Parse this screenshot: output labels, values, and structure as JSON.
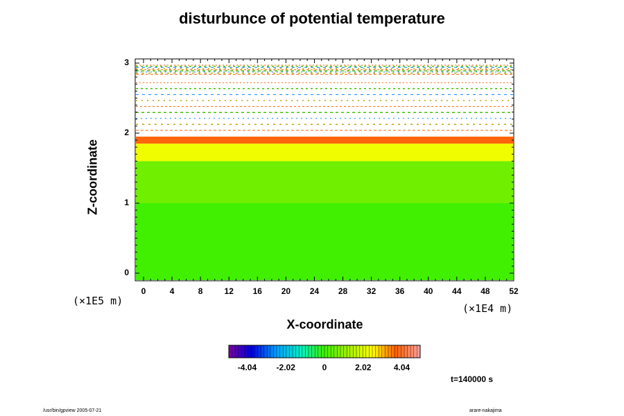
{
  "chart_data": {
    "type": "heatmap",
    "title": "disturbunce of potential temperature",
    "xlabel": "X-coordinate",
    "ylabel": "Z-coordinate",
    "x_unit": "(×1E4 m)",
    "y_unit": "(×1E5 m)",
    "xlim": [
      0,
      52
    ],
    "ylim": [
      0,
      3
    ],
    "x_ticks": [
      "0",
      "4",
      "8",
      "12",
      "16",
      "20",
      "24",
      "28",
      "32",
      "36",
      "40",
      "44",
      "48",
      "52"
    ],
    "y_ticks": [
      "0",
      "1",
      "2",
      "3"
    ],
    "colorbar": {
      "ticks": [
        "-4.04",
        "-2.02",
        "0",
        "2.02",
        "4.04"
      ],
      "range": [
        -5.0,
        5.0
      ]
    },
    "field_description": [
      {
        "z_range": [
          0,
          1.0
        ],
        "value": 0.0
      },
      {
        "z_range": [
          1.0,
          1.6
        ],
        "value": 0.6
      },
      {
        "z_range": [
          1.6,
          1.85
        ],
        "value": 2.3
      },
      {
        "z_range": [
          1.85,
          1.95
        ],
        "value": 3.8
      },
      {
        "z_range": [
          2.0,
          2.8
        ],
        "value": null
      },
      {
        "z_range": [
          2.8,
          3.05
        ],
        "value_left": 4.0,
        "value_right": -4.2
      }
    ],
    "time": "t=140000 s"
  },
  "footer": {
    "left": "/usr/bin/gpview 2005-07-21",
    "right": "arare-nakajima"
  },
  "colors": {
    "background": "#ffffff",
    "frame": "#000000"
  }
}
